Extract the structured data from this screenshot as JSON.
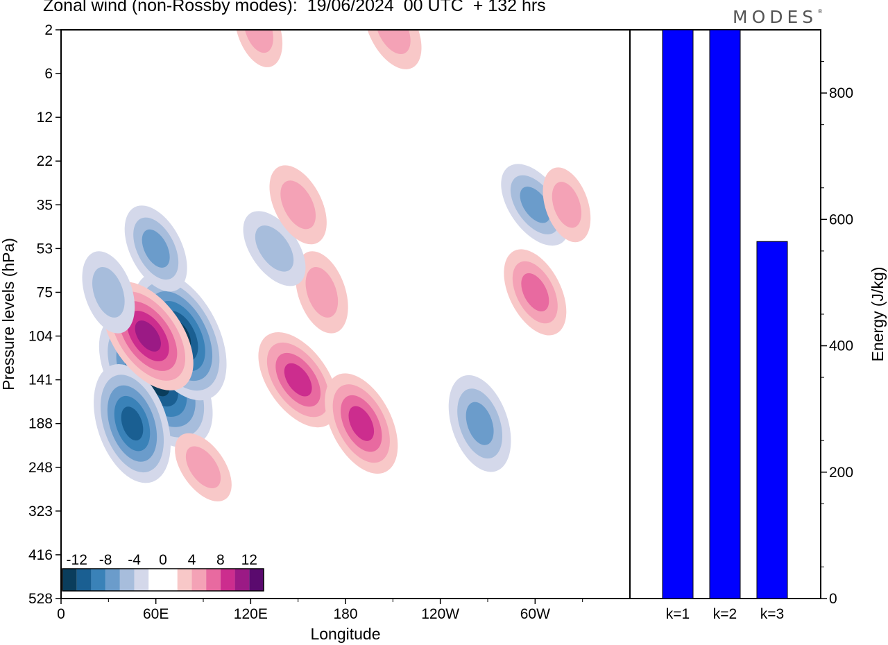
{
  "title": "Zonal wind (non-Rossby modes):  19/06/2024  00 UTC  + 132 hrs",
  "brand": "MODES",
  "brand_mark": "®",
  "colors": {
    "negative": [
      "#0a3d5c",
      "#1a5f92",
      "#3a82b8",
      "#6b9ccb",
      "#a7bddc",
      "#d4d8ea"
    ],
    "positive": [
      "#f8c8c8",
      "#f4a2b6",
      "#e86aa0",
      "#cc2d8e",
      "#9b1a85",
      "#5a0a6e"
    ],
    "bar": "#0000ff"
  },
  "chart_data": [
    {
      "type": "heatmap",
      "title": "Zonal wind (non-Rossby modes):  19/06/2024  00 UTC  + 132 hrs",
      "xlabel": "Longitude",
      "ylabel": "Pressure levels (hPa)",
      "x_ticks": [
        "0",
        "60E",
        "120E",
        "180",
        "120W",
        "60W"
      ],
      "y_ticks": [
        "2",
        "6",
        "12",
        "22",
        "35",
        "53",
        "75",
        "104",
        "141",
        "188",
        "248",
        "323",
        "416",
        "528"
      ],
      "colorbar": {
        "labels": [
          "-12",
          "-8",
          "-4",
          "0",
          "4",
          "8",
          "12"
        ],
        "levels": [
          -14,
          -12,
          -10,
          -8,
          -6,
          -4,
          -2,
          2,
          4,
          6,
          8,
          10,
          12,
          14
        ]
      },
      "features": [
        {
          "lon": 60,
          "level": 141,
          "value": -14
        },
        {
          "lon": 75,
          "level": 104,
          "value": -12
        },
        {
          "lon": 45,
          "level": 188,
          "value": -10
        },
        {
          "lon": 55,
          "level": 104,
          "value": 10
        },
        {
          "lon": 60,
          "level": 53,
          "value": -6
        },
        {
          "lon": 30,
          "level": 75,
          "value": -5
        },
        {
          "lon": 150,
          "level": 141,
          "value": 8
        },
        {
          "lon": 190,
          "level": 188,
          "value": 8
        },
        {
          "lon": 165,
          "level": 75,
          "value": 5
        },
        {
          "lon": 135,
          "level": 53,
          "value": -5
        },
        {
          "lon": 150,
          "level": 35,
          "value": 5
        },
        {
          "lon": 265,
          "level": 188,
          "value": -7
        },
        {
          "lon": 300,
          "level": 35,
          "value": -6
        },
        {
          "lon": 300,
          "level": 75,
          "value": 6
        },
        {
          "lon": 320,
          "level": 35,
          "value": 4
        },
        {
          "lon": 90,
          "level": 248,
          "value": 4
        },
        {
          "lon": 210,
          "level": 2,
          "value": 5
        },
        {
          "lon": 125,
          "level": 2,
          "value": 4
        }
      ]
    },
    {
      "type": "bar",
      "categories": [
        "k=1",
        "k=2",
        "k=3"
      ],
      "values": [
        900,
        900,
        565
      ],
      "ylabel": "Energy (J/kg)",
      "ylim": [
        0,
        900
      ],
      "y_ticks": [
        0,
        200,
        400,
        600,
        800
      ]
    }
  ]
}
